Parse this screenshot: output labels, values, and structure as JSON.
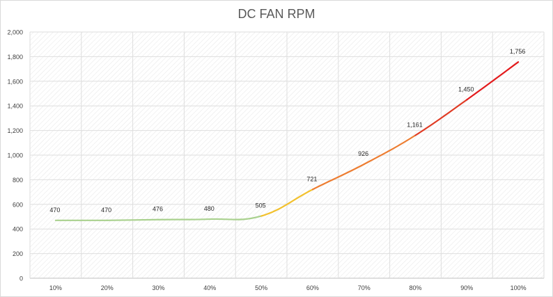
{
  "chart_data": {
    "type": "line",
    "title": "DC FAN RPM",
    "xlabel": "",
    "ylabel": "",
    "categories": [
      "10%",
      "20%",
      "30%",
      "40%",
      "50%",
      "60%",
      "70%",
      "80%",
      "90%",
      "100%"
    ],
    "values": [
      470,
      470,
      476,
      480,
      505,
      721,
      926,
      1161,
      1450,
      1756
    ],
    "data_labels": [
      "470",
      "470",
      "476",
      "480",
      "505",
      "721",
      "926",
      "1,161",
      "1,450",
      "1,756"
    ],
    "ylim": [
      0,
      2000
    ],
    "yticks": [
      0,
      200,
      400,
      600,
      800,
      1000,
      1200,
      1400,
      1600,
      1800,
      2000
    ],
    "ytick_labels": [
      "0",
      "200",
      "400",
      "600",
      "800",
      "1,000",
      "1,200",
      "1,400",
      "1,600",
      "1,800",
      "2,000"
    ],
    "grid": true,
    "legend": "none",
    "line_gradient": [
      "#a9d18e",
      "#a9d18e",
      "#a9d18e",
      "#a9d18e",
      "#a9d18e",
      "#f2c12e",
      "#ed7d31",
      "#ed7d31",
      "#e03b24",
      "#e31a1c"
    ]
  }
}
